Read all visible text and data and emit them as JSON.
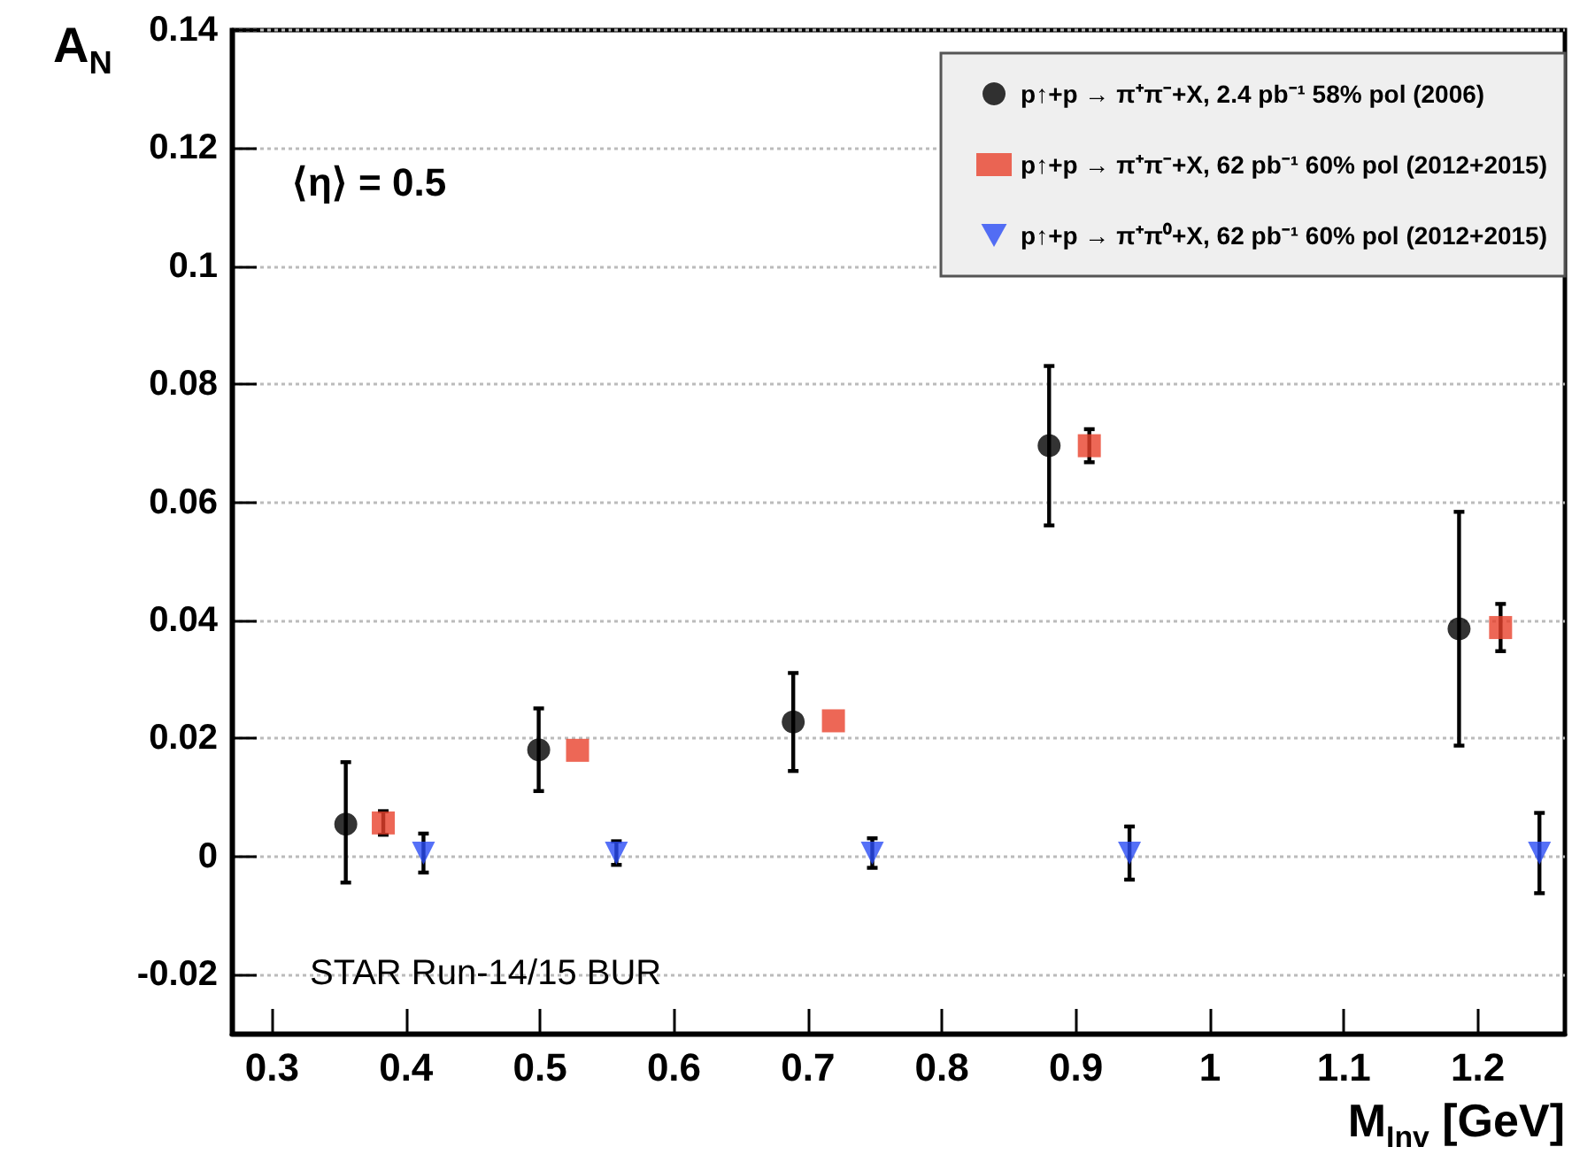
{
  "chart_data": {
    "type": "scatter",
    "xlabel": "M$_{Inv}$ [GeV]",
    "ylabel": "A$_{N}$",
    "annotations": [
      "⟨η⟩ = 0.5",
      "STAR Run-14/15 BUR"
    ],
    "xlim": [
      0.27,
      1.265
    ],
    "xticks": [
      0.3,
      0.4,
      0.5,
      0.6,
      0.7,
      0.8,
      0.9,
      1,
      1.1,
      1.2
    ],
    "ylim": [
      -0.03,
      0.14
    ],
    "yticks": [
      -0.02,
      0,
      0.02,
      0.04,
      0.06,
      0.08,
      0.1,
      0.12,
      0.14
    ],
    "grid": "y",
    "legend": "top right",
    "series": [
      {
        "name": "p↑+p → π⁺π⁻+X, 2.4 pb⁻¹ 58% pol (2006)",
        "color": "#000000",
        "marker": "circle",
        "x": [
          0.355,
          0.499,
          0.689,
          0.88,
          1.186
        ],
        "values": [
          0.0055,
          0.0181,
          0.0228,
          0.0696,
          0.0386
        ],
        "errors": [
          [
            -0.0044,
            0.016
          ],
          0.007,
          0.0083,
          0.0135,
          0.0198
        ]
      },
      {
        "name": "p↑+p → π⁺π⁻+X, 62 pb⁻¹ 60% pol (2012+2015)",
        "color": "#e8412c",
        "marker": "square",
        "x": [
          0.383,
          0.528,
          0.719,
          0.91,
          1.217
        ],
        "values": [
          0.0057,
          0.018,
          0.023,
          0.0696,
          0.0388
        ],
        "errors": [
          0.002,
          null,
          null,
          0.0028,
          0.004
        ]
      },
      {
        "name": "p↑+p → π⁺π⁰+X, 62 pb⁻¹ 60% pol (2012+2015)",
        "color": "#2b4cf5",
        "marker": "triangle",
        "x": [
          0.413,
          0.557,
          0.748,
          0.94,
          1.246
        ],
        "values": [
          0.0006,
          0.0006,
          0.0006,
          0.0006,
          0.0006
        ],
        "errors": [
          0.0033,
          0.002,
          0.0025,
          0.0045,
          0.0068
        ]
      }
    ]
  }
}
